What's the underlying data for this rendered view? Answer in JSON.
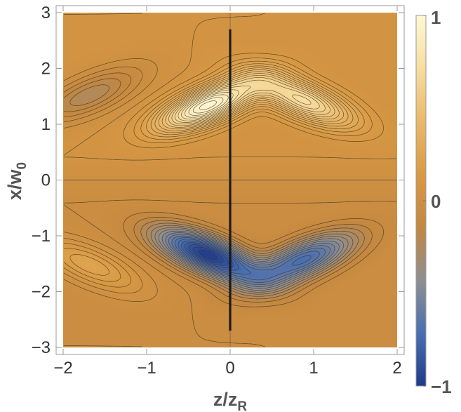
{
  "chart_data": {
    "type": "heatmap",
    "subtype": "contour-density",
    "xlabel_main": "z/z",
    "xlabel_sub": "R",
    "ylabel_main": "x/w",
    "ylabel_sub": "0",
    "xlim": [
      -2,
      2
    ],
    "ylim": [
      -3,
      3
    ],
    "x_ticks": [
      -2,
      -1,
      0,
      1,
      2
    ],
    "y_ticks": [
      -3,
      -2,
      -1,
      0,
      1,
      2,
      3
    ],
    "x_tick_labels": [
      "−2",
      "−1",
      "0",
      "1",
      "2"
    ],
    "y_tick_labels": [
      "−3",
      "−2",
      "−1",
      "0",
      "1",
      "2",
      "3"
    ],
    "colorbar": {
      "range": [
        -1,
        1
      ],
      "labels": [
        "1",
        "0",
        "−1"
      ],
      "label_values": [
        1,
        0,
        -1
      ],
      "colors": {
        "low": "#2a4b9a",
        "mid": "#d9923a",
        "high": "#fdf6cf"
      }
    },
    "colormap": [
      "#1f3a8c",
      "#4a6fb0",
      "#8f8e90",
      "#c38740",
      "#d99a44",
      "#eab86a",
      "#f7dda0",
      "#fef8d6"
    ],
    "grid": false,
    "extrema": [
      {
        "x": -0.3,
        "y": 1.3,
        "value": 1.0
      },
      {
        "x": 0.9,
        "y": 1.4,
        "value": 0.7
      },
      {
        "x": -1.7,
        "y": 1.5,
        "value": -0.3
      },
      {
        "x": -0.3,
        "y": -1.3,
        "value": -1.0
      },
      {
        "x": 0.9,
        "y": -1.4,
        "value": -0.7
      },
      {
        "x": -1.7,
        "y": -1.5,
        "value": 0.3
      }
    ],
    "discontinuity_x": 0,
    "contour_levels": 40
  }
}
